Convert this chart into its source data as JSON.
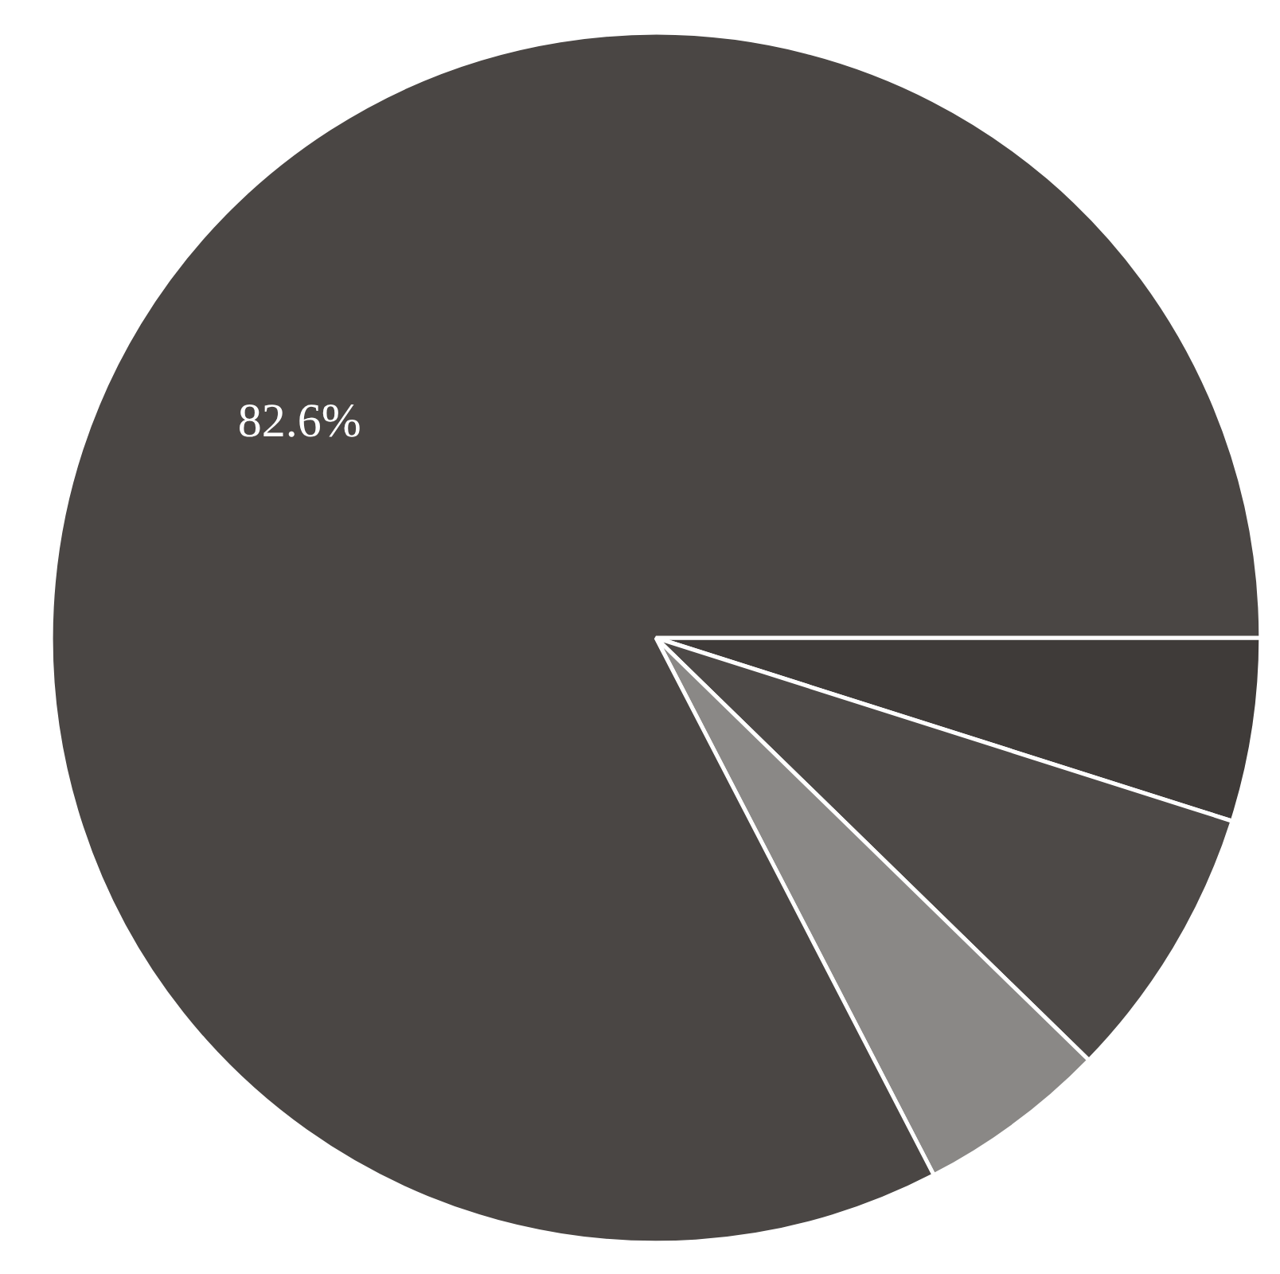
{
  "chart_data": {
    "type": "pie",
    "categories": [
      null,
      null,
      null,
      null
    ],
    "values": [
      4.9,
      7.4,
      5.1,
      82.6
    ],
    "colors": [
      "#3f3b39",
      "#4d4947",
      "#8a8886",
      "#4a4644"
    ],
    "value_labels": [
      null,
      null,
      null,
      "82.6%"
    ]
  }
}
